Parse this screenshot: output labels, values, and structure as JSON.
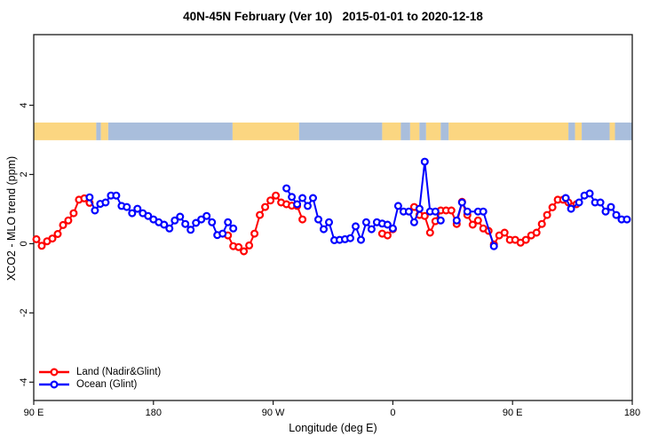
{
  "chart_data": {
    "type": "line",
    "title": "40N-45N February (Ver 10)   2015-01-01 to 2020-12-18",
    "xlabel": "Longitude (deg E)",
    "ylabel": "XCO2 - MLO trend (ppm)",
    "grid": false,
    "legend_position": "bottom-left",
    "xlim_deg": [
      90,
      540
    ],
    "ylim": [
      -4.53,
      6.04
    ],
    "x_ticks": [
      {
        "deg": 90,
        "label": "90 E"
      },
      {
        "deg": 180,
        "label": "180"
      },
      {
        "deg": 270,
        "label": "90 W"
      },
      {
        "deg": 360,
        "label": "0"
      },
      {
        "deg": 450,
        "label": "90 E"
      },
      {
        "deg": 540,
        "label": "180"
      }
    ],
    "y_ticks": [
      {
        "value": -4,
        "label": "-4"
      },
      {
        "value": -2,
        "label": "-2"
      },
      {
        "value": 0,
        "label": "0"
      },
      {
        "value": 2,
        "label": "2"
      },
      {
        "value": 4,
        "label": "4"
      }
    ],
    "map_band": {
      "value_range": [
        2.99,
        3.5
      ],
      "land_color": "#FBD681",
      "ocean_color": "#A9BEDC",
      "segments": [
        {
          "from": 90,
          "to": 137,
          "surface": "land"
        },
        {
          "from": 137,
          "to": 140.5,
          "surface": "ocean"
        },
        {
          "from": 140.5,
          "to": 146,
          "surface": "land"
        },
        {
          "from": 146,
          "to": 239.5,
          "surface": "ocean"
        },
        {
          "from": 239.5,
          "to": 289.5,
          "surface": "land"
        },
        {
          "from": 289.5,
          "to": 352,
          "surface": "ocean"
        },
        {
          "from": 352,
          "to": 366,
          "surface": "land"
        },
        {
          "from": 366,
          "to": 373,
          "surface": "ocean"
        },
        {
          "from": 373,
          "to": 380,
          "surface": "land"
        },
        {
          "from": 380,
          "to": 385,
          "surface": "ocean"
        },
        {
          "from": 385,
          "to": 396,
          "surface": "land"
        },
        {
          "from": 396,
          "to": 402,
          "surface": "ocean"
        },
        {
          "from": 402,
          "to": 492,
          "surface": "land"
        },
        {
          "from": 492,
          "to": 497,
          "surface": "ocean"
        },
        {
          "from": 497,
          "to": 502,
          "surface": "land"
        },
        {
          "from": 502,
          "to": 523,
          "surface": "ocean"
        },
        {
          "from": 523,
          "to": 527,
          "surface": "land"
        },
        {
          "from": 527,
          "to": 540,
          "surface": "ocean"
        }
      ]
    },
    "series": [
      {
        "name": "Land (Nadir&Glint)",
        "color": "#FF0000",
        "points": [
          [
            92,
            0.13
          ],
          [
            96,
            -0.06
          ],
          [
            100,
            0.07
          ],
          [
            104,
            0.15
          ],
          [
            108,
            0.28
          ],
          [
            112,
            0.54
          ],
          [
            116,
            0.67
          ],
          [
            120,
            0.88
          ],
          [
            124,
            1.27
          ],
          [
            128,
            1.31
          ],
          [
            132,
            1.18
          ],
          [
            236,
            0.24
          ],
          [
            240,
            -0.07
          ],
          [
            244,
            -0.1
          ],
          [
            248,
            -0.22
          ],
          [
            252,
            -0.05
          ],
          [
            256,
            0.29
          ],
          [
            260,
            0.83
          ],
          [
            264,
            1.06
          ],
          [
            268,
            1.25
          ],
          [
            272,
            1.39
          ],
          [
            276,
            1.19
          ],
          [
            280,
            1.14
          ],
          [
            284,
            1.1
          ],
          [
            288,
            1.09
          ],
          [
            292,
            0.7
          ],
          [
            352,
            0.29
          ],
          [
            356,
            0.24
          ],
          [
            360,
            0.42
          ],
          [
            376,
            1.06
          ],
          [
            380,
            0.83
          ],
          [
            384,
            0.8
          ],
          [
            388,
            0.32
          ],
          [
            392,
            0.65
          ],
          [
            396,
            0.96
          ],
          [
            400,
            0.96
          ],
          [
            404,
            0.96
          ],
          [
            408,
            0.57
          ],
          [
            412,
            1.21
          ],
          [
            416,
            0.83
          ],
          [
            420,
            0.55
          ],
          [
            424,
            0.67
          ],
          [
            428,
            0.44
          ],
          [
            432,
            0.37
          ],
          [
            436,
            -0.02
          ],
          [
            440,
            0.24
          ],
          [
            444,
            0.32
          ],
          [
            448,
            0.11
          ],
          [
            452,
            0.11
          ],
          [
            456,
            0.03
          ],
          [
            460,
            0.11
          ],
          [
            464,
            0.24
          ],
          [
            468,
            0.32
          ],
          [
            472,
            0.57
          ],
          [
            476,
            0.83
          ],
          [
            480,
            1.05
          ],
          [
            484,
            1.27
          ],
          [
            488,
            1.27
          ],
          [
            492,
            1.19
          ],
          [
            498,
            1.14
          ]
        ]
      },
      {
        "name": "Ocean (Glint)",
        "color": "#0000FF",
        "points": [
          [
            132,
            1.34
          ],
          [
            136,
            0.96
          ],
          [
            140,
            1.15
          ],
          [
            144,
            1.19
          ],
          [
            148,
            1.39
          ],
          [
            152,
            1.39
          ],
          [
            156,
            1.09
          ],
          [
            160,
            1.06
          ],
          [
            164,
            0.88
          ],
          [
            168,
            1.01
          ],
          [
            172,
            0.88
          ],
          [
            176,
            0.8
          ],
          [
            180,
            0.7
          ],
          [
            184,
            0.62
          ],
          [
            188,
            0.55
          ],
          [
            192,
            0.44
          ],
          [
            196,
            0.67
          ],
          [
            200,
            0.78
          ],
          [
            204,
            0.57
          ],
          [
            208,
            0.4
          ],
          [
            212,
            0.6
          ],
          [
            216,
            0.7
          ],
          [
            220,
            0.8
          ],
          [
            224,
            0.62
          ],
          [
            228,
            0.25
          ],
          [
            232,
            0.29
          ],
          [
            236,
            0.62
          ],
          [
            240,
            0.44
          ],
          [
            280,
            1.6
          ],
          [
            284,
            1.35
          ],
          [
            288,
            1.14
          ],
          [
            292,
            1.32
          ],
          [
            296,
            1.09
          ],
          [
            300,
            1.32
          ],
          [
            304,
            0.7
          ],
          [
            308,
            0.42
          ],
          [
            312,
            0.62
          ],
          [
            316,
            0.1
          ],
          [
            320,
            0.11
          ],
          [
            324,
            0.13
          ],
          [
            328,
            0.16
          ],
          [
            332,
            0.5
          ],
          [
            336,
            0.11
          ],
          [
            340,
            0.62
          ],
          [
            344,
            0.42
          ],
          [
            348,
            0.62
          ],
          [
            352,
            0.58
          ],
          [
            356,
            0.55
          ],
          [
            360,
            0.44
          ],
          [
            364,
            1.09
          ],
          [
            368,
            0.93
          ],
          [
            372,
            0.93
          ],
          [
            376,
            0.62
          ],
          [
            380,
            1.01
          ],
          [
            384,
            2.37
          ],
          [
            388,
            0.93
          ],
          [
            392,
            0.93
          ],
          [
            396,
            0.67
          ],
          [
            408,
            0.67
          ],
          [
            412,
            1.19
          ],
          [
            416,
            0.93
          ],
          [
            424,
            0.93
          ],
          [
            428,
            0.93
          ],
          [
            436,
            -0.07
          ],
          [
            490,
            1.32
          ],
          [
            494,
            1.01
          ],
          [
            500,
            1.19
          ],
          [
            504,
            1.39
          ],
          [
            508,
            1.45
          ],
          [
            512,
            1.19
          ],
          [
            516,
            1.19
          ],
          [
            520,
            0.93
          ],
          [
            524,
            1.06
          ],
          [
            528,
            0.83
          ],
          [
            532,
            0.7
          ],
          [
            536,
            0.7
          ]
        ]
      }
    ]
  }
}
